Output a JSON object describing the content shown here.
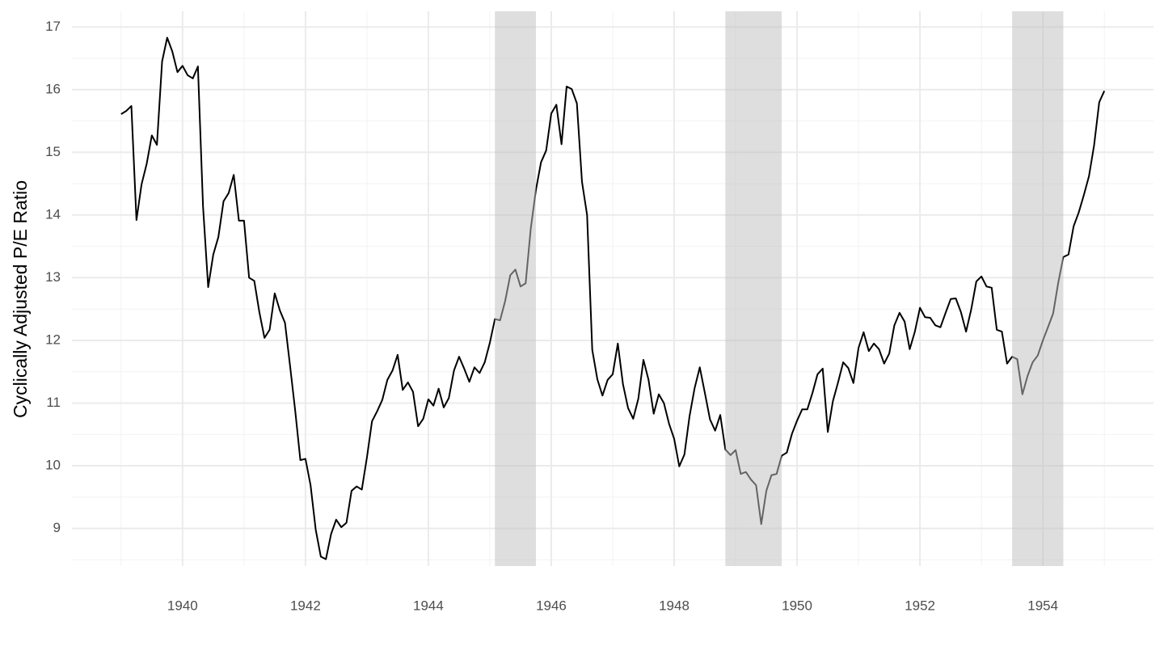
{
  "chart_data": {
    "type": "line",
    "y_label": "Cyclically Adjusted P/E Ratio",
    "x": [
      1939,
      1939.083,
      1939.167,
      1939.25,
      1939.333,
      1939.417,
      1939.5,
      1939.583,
      1939.667,
      1939.75,
      1939.833,
      1939.917,
      1940,
      1940.083,
      1940.167,
      1940.25,
      1940.333,
      1940.417,
      1940.5,
      1940.583,
      1940.667,
      1940.75,
      1940.833,
      1940.917,
      1941,
      1941.083,
      1941.167,
      1941.25,
      1941.333,
      1941.417,
      1941.5,
      1941.583,
      1941.667,
      1941.75,
      1941.833,
      1941.917,
      1942,
      1942.083,
      1942.167,
      1942.25,
      1942.333,
      1942.417,
      1942.5,
      1942.583,
      1942.667,
      1942.75,
      1942.833,
      1942.917,
      1943,
      1943.083,
      1943.167,
      1943.25,
      1943.333,
      1943.417,
      1943.5,
      1943.583,
      1943.667,
      1943.75,
      1943.833,
      1943.917,
      1944,
      1944.083,
      1944.167,
      1944.25,
      1944.333,
      1944.417,
      1944.5,
      1944.583,
      1944.667,
      1944.75,
      1944.833,
      1944.917,
      1945,
      1945.083,
      1945.167,
      1945.25,
      1945.333,
      1945.417,
      1945.5,
      1945.583,
      1945.667,
      1945.75,
      1945.833,
      1945.917,
      1946,
      1946.083,
      1946.167,
      1946.25,
      1946.333,
      1946.417,
      1946.5,
      1946.583,
      1946.667,
      1946.75,
      1946.833,
      1946.917,
      1947,
      1947.083,
      1947.167,
      1947.25,
      1947.333,
      1947.417,
      1947.5,
      1947.583,
      1947.667,
      1947.75,
      1947.833,
      1947.917,
      1948,
      1948.083,
      1948.167,
      1948.25,
      1948.333,
      1948.417,
      1948.5,
      1948.583,
      1948.667,
      1948.75,
      1948.833,
      1948.917,
      1949,
      1949.083,
      1949.167,
      1949.25,
      1949.333,
      1949.417,
      1949.5,
      1949.583,
      1949.667,
      1949.75,
      1949.833,
      1949.917,
      1950,
      1950.083,
      1950.167,
      1950.25,
      1950.333,
      1950.417,
      1950.5,
      1950.583,
      1950.667,
      1950.75,
      1950.833,
      1950.917,
      1951,
      1951.083,
      1951.167,
      1951.25,
      1951.333,
      1951.417,
      1951.5,
      1951.583,
      1951.667,
      1951.75,
      1951.833,
      1951.917,
      1952,
      1952.083,
      1952.167,
      1952.25,
      1952.333,
      1952.417,
      1952.5,
      1952.583,
      1952.667,
      1952.75,
      1952.833,
      1952.917,
      1953,
      1953.083,
      1953.167,
      1953.25,
      1953.333,
      1953.417,
      1953.5,
      1953.583,
      1953.667,
      1953.75,
      1953.833,
      1953.917,
      1954,
      1954.083,
      1954.167,
      1954.25,
      1954.333,
      1954.417,
      1954.5,
      1954.583,
      1954.667,
      1954.75,
      1954.833,
      1954.917,
      1955
    ],
    "values": [
      15.61,
      15.66,
      15.74,
      13.92,
      14.49,
      14.82,
      15.27,
      15.12,
      16.45,
      16.83,
      16.61,
      16.28,
      16.38,
      16.23,
      16.18,
      16.37,
      14.14,
      12.85,
      13.37,
      13.65,
      14.22,
      14.35,
      14.64,
      13.91,
      13.91,
      13.0,
      12.95,
      12.45,
      12.04,
      12.17,
      12.75,
      12.48,
      12.28,
      11.59,
      10.88,
      10.09,
      10.11,
      9.69,
      8.98,
      8.55,
      8.51,
      8.91,
      9.14,
      9.02,
      9.09,
      9.6,
      9.67,
      9.62,
      10.13,
      10.71,
      10.87,
      11.05,
      11.37,
      11.52,
      11.77,
      11.21,
      11.33,
      11.18,
      10.63,
      10.75,
      11.06,
      10.96,
      11.23,
      10.93,
      11.08,
      11.52,
      11.74,
      11.55,
      11.34,
      11.57,
      11.48,
      11.65,
      11.96,
      12.34,
      12.32,
      12.63,
      13.04,
      13.13,
      12.86,
      12.91,
      13.79,
      14.4,
      14.84,
      15.03,
      15.62,
      15.76,
      15.13,
      16.05,
      16.01,
      15.78,
      14.53,
      14.0,
      11.85,
      11.38,
      11.12,
      11.37,
      11.46,
      11.95,
      11.3,
      10.92,
      10.75,
      11.07,
      11.69,
      11.37,
      10.83,
      11.14,
      11.0,
      10.67,
      10.43,
      9.99,
      10.18,
      10.79,
      11.24,
      11.57,
      11.16,
      10.74,
      10.56,
      10.81,
      10.26,
      10.17,
      10.25,
      9.87,
      9.9,
      9.78,
      9.69,
      9.07,
      9.6,
      9.85,
      9.87,
      10.16,
      10.21,
      10.51,
      10.72,
      10.9,
      10.9,
      11.16,
      11.46,
      11.55,
      10.54,
      11.03,
      11.33,
      11.65,
      11.56,
      11.32,
      11.88,
      12.13,
      11.83,
      11.95,
      11.86,
      11.63,
      11.79,
      12.24,
      12.44,
      12.3,
      11.86,
      12.14,
      12.52,
      12.37,
      12.36,
      12.24,
      12.21,
      12.44,
      12.66,
      12.67,
      12.45,
      12.14,
      12.49,
      12.94,
      13.02,
      12.86,
      12.84,
      12.17,
      12.14,
      11.63,
      11.74,
      11.7,
      11.14,
      11.43,
      11.65,
      11.76,
      12.0,
      12.21,
      12.43,
      12.92,
      13.33,
      13.37,
      13.82,
      14.04,
      14.32,
      14.62,
      15.11,
      15.8,
      15.98
    ],
    "color": "#000000",
    "shaded_regions": [
      [
        1945.083,
        1945.75
      ],
      [
        1948.833,
        1949.75
      ],
      [
        1953.5,
        1954.333
      ]
    ],
    "shade_color": "#c0c0c0",
    "xlim": [
      1938.2,
      1955.8
    ],
    "xticks": [
      1940,
      1942,
      1944,
      1946,
      1948,
      1950,
      1952,
      1954
    ],
    "xminor": [
      1939,
      1941,
      1943,
      1945,
      1947,
      1949,
      1951,
      1953,
      1955
    ],
    "ylim": [
      8.4,
      17.25
    ],
    "yticks": [
      9,
      10,
      11,
      12,
      13,
      14,
      15,
      16,
      17
    ],
    "yminor": [
      8.5,
      9.5,
      10.5,
      11.5,
      12.5,
      13.5,
      14.5,
      15.5,
      16.5
    ],
    "grid": true
  }
}
